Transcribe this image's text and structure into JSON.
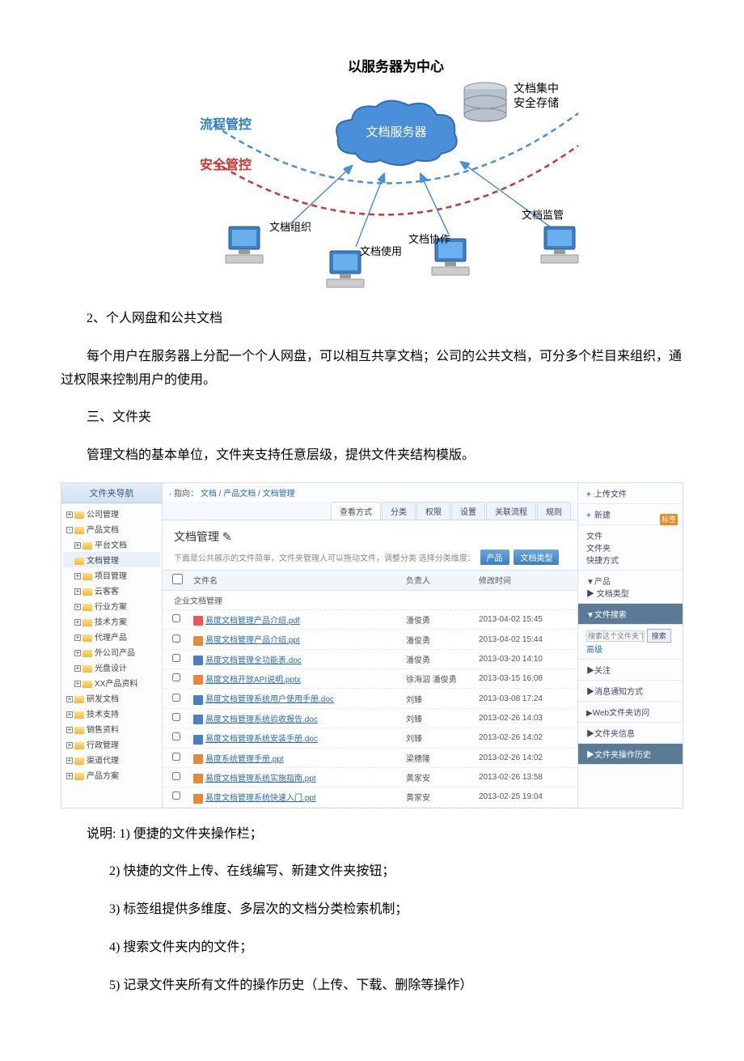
{
  "diagram": {
    "title": "以服务器为中心",
    "cloud": "文档服务器",
    "server_line1": "文档集中",
    "server_line2": "安全存储",
    "flow": "流程管控",
    "safe": "安全管控",
    "labels": {
      "org": "文档组织",
      "use": "文档使用",
      "coop": "文档协作",
      "monitor": "文档监管"
    }
  },
  "text": {
    "p1": "2、个人网盘和公共文档",
    "p2": "每个用户在服务器上分配一个个人网盘，可以相互共享文档；公司的公共文档，可分多个栏目来组织，通过权限来控制用户的使用。",
    "p3": "三、文件夹",
    "p4": "管理文档的基本单位，文件夹支持任意层级，提供文件夹结构模版。",
    "p5": "说明: 1) 便捷的文件夹操作栏；",
    "p6": "2) 快捷的文件上传、在线编写、新建文件夹按钮；",
    "p7": "3) 标签组提供多维度、多层次的文档分类检索机制；",
    "p8": "4) 搜索文件夹内的文件；",
    "p9": "5) 记录文件夹所有文件的操作历史（上传、下载、删除等操作）"
  },
  "ss": {
    "navTitle": "文件夹导航",
    "tree": [
      {
        "t": "公司管理",
        "l": 0,
        "e": "+"
      },
      {
        "t": "产品文档",
        "l": 0,
        "e": "-"
      },
      {
        "t": "平台文档",
        "l": 1,
        "e": "+"
      },
      {
        "t": "文档管理",
        "l": 1,
        "e": "",
        "sel": true
      },
      {
        "t": "项目管理",
        "l": 1,
        "e": "+"
      },
      {
        "t": "云客客",
        "l": 1,
        "e": "+"
      },
      {
        "t": "行业方案",
        "l": 1,
        "e": "+"
      },
      {
        "t": "技术方案",
        "l": 1,
        "e": "+"
      },
      {
        "t": "代理产品",
        "l": 1,
        "e": "+"
      },
      {
        "t": "外公司产品",
        "l": 1,
        "e": "+"
      },
      {
        "t": "光盘设计",
        "l": 1,
        "e": "+"
      },
      {
        "t": "XX产品资料",
        "l": 1,
        "e": "+"
      },
      {
        "t": "研发文档",
        "l": 0,
        "e": "+"
      },
      {
        "t": "技术支持",
        "l": 0,
        "e": "+"
      },
      {
        "t": "销售资料",
        "l": 0,
        "e": "+"
      },
      {
        "t": "行政管理",
        "l": 0,
        "e": "+"
      },
      {
        "t": "渠道代理",
        "l": 0,
        "e": "+"
      },
      {
        "t": "产品方案",
        "l": 0,
        "e": "+"
      }
    ],
    "bc": {
      "pre": "· 指向：",
      "p1": "文档",
      "p2": "产品文档",
      "p3": "文档管理"
    },
    "tabs": [
      "查看方式",
      "分类",
      "权限",
      "设置",
      "关联流程",
      "规则"
    ],
    "ftitle": "文档管理 ✎",
    "fdesc": "下面是公共展示的文件简单，文件夹管理人可以拖动文件，调整分类 选择分类维度：",
    "fbtn1": "产品",
    "fbtn2": "文档类型",
    "thead": {
      "c1": "",
      "c2": "文件名",
      "c3": "负责人",
      "c4": "修改时间"
    },
    "cat": "企业文档管理",
    "rows": [
      {
        "f": "易度文档管理产品介绍.pdf",
        "ic": "pdf",
        "o": "潘俊勇",
        "d": "2013-04-02 15:45"
      },
      {
        "f": "易度文档管理产品介绍.ppt",
        "ic": "ppt",
        "o": "潘俊勇",
        "d": "2013-04-02 15:44"
      },
      {
        "f": "易度文档管理全功能表.doc",
        "ic": "doc",
        "o": "潘俊勇",
        "d": "2013-03-20 14:10"
      },
      {
        "f": "易度文档开放API说明.pptx",
        "ic": "pptx",
        "o": "徐海泅 潘俊勇",
        "d": "2013-03-15 16:08"
      },
      {
        "f": "易度文档管理系统用户使用手册.doc",
        "ic": "doc",
        "o": "刘臻",
        "d": "2013-03-08 17:24"
      },
      {
        "f": "易度文档管理系统验收报告.doc",
        "ic": "doc",
        "o": "刘臻",
        "d": "2013-02-26 14:03"
      },
      {
        "f": "易度文档管理系统安装手册.doc",
        "ic": "doc",
        "o": "刘臻",
        "d": "2013-02-26 14:02"
      },
      {
        "f": "易度系统管理手册.ppt",
        "ic": "ppt",
        "o": "梁穗隆",
        "d": "2013-02-26 14:02"
      },
      {
        "f": "易度文档管理系统实施指南.ppt",
        "ic": "ppt",
        "o": "黄家安",
        "d": "2013-02-26 13:58"
      },
      {
        "f": "易度文档管理系统快速入门.ppt",
        "ic": "ppt",
        "o": "黄家安",
        "d": "2013-02-25 19:04"
      }
    ],
    "right": {
      "upload": "上传文件",
      "create": "新建",
      "menu": [
        "文件",
        "文件夹",
        "快捷方式"
      ],
      "badge": "标签",
      "tag": "▼产品",
      "tag2": "▶ 文档类型",
      "search": "▼文件搜索",
      "sbtn": "搜索",
      "adv": "高级",
      "sph": "搜索这个文件夹下的文件",
      "follow": "▶关注",
      "notify": "▶消息通知方式",
      "web": "▶Web文件夹访问",
      "info": "▶文件夹信息",
      "hist": "▶文件夹操作历史"
    }
  }
}
